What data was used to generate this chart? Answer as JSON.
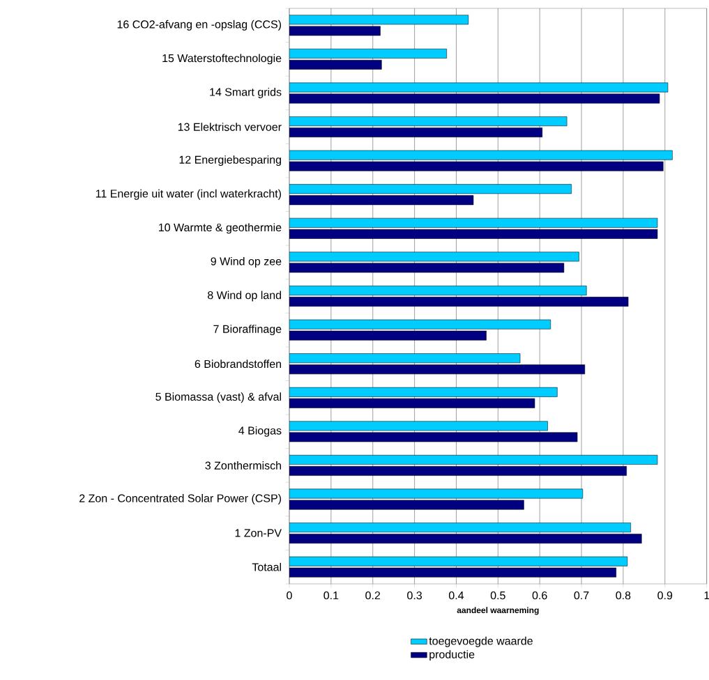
{
  "chart_data": {
    "type": "bar",
    "orientation": "horizontal",
    "xlabel": "aandeel waarneming",
    "categories": [
      "16 CO2-afvang en -opslag (CCS)",
      "15 Waterstoftechnologie",
      "14 Smart grids",
      "13 Elektrisch vervoer",
      "12 Energiebesparing",
      "11 Energie uit water (incl waterkracht)",
      "10 Warmte & geothermie",
      "9 Wind op zee",
      "8 Wind op land",
      "7 Bioraffinage",
      "6 Biobrandstoffen",
      "5 Biomassa (vast) & afval",
      "4 Biogas",
      "3 Zonthermisch",
      "2 Zon - Concentrated Solar Power (CSP)",
      "1 Zon-PV",
      "Totaal"
    ],
    "series": [
      {
        "name": "toegevoegde waarde",
        "color": "#00ccff",
        "values": [
          0.429,
          0.377,
          0.907,
          0.665,
          0.918,
          0.676,
          0.882,
          0.694,
          0.712,
          0.626,
          0.553,
          0.642,
          0.619,
          0.882,
          0.703,
          0.818,
          0.81
        ]
      },
      {
        "name": "productie",
        "color": "#000080",
        "values": [
          0.218,
          0.221,
          0.887,
          0.606,
          0.896,
          0.441,
          0.882,
          0.658,
          0.812,
          0.472,
          0.708,
          0.588,
          0.69,
          0.808,
          0.562,
          0.844,
          0.783
        ]
      }
    ],
    "xlim": [
      0,
      1
    ],
    "xticks": [
      0,
      0.1,
      0.2,
      0.3,
      0.4,
      0.5,
      0.6,
      0.7,
      0.8,
      0.9,
      1
    ],
    "grid": "x",
    "legend": "bottom"
  }
}
